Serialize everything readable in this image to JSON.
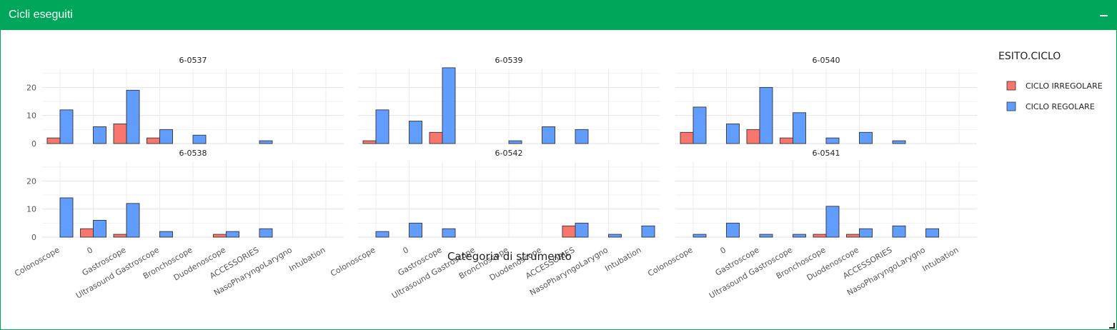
{
  "header": {
    "title": "Cicli eseguiti",
    "collapse_icon": "minus-icon"
  },
  "colors": {
    "header": "#00a65a",
    "irregolare": "#f8766d",
    "regolare": "#619cff"
  },
  "chart_data": {
    "type": "bar",
    "layout": "facets-2x3",
    "xlabel": "Categoria di strumento",
    "ylabel": "",
    "ylim": [
      0,
      28
    ],
    "yticks": [
      0,
      10,
      20
    ],
    "grid": true,
    "legend": {
      "title": "ESITO.CICLO",
      "position": "right",
      "entries": [
        {
          "name": "CICLO IRREGOLARE",
          "color": "#f8766d"
        },
        {
          "name": "CICLO REGOLARE",
          "color": "#619cff"
        }
      ]
    },
    "categories": [
      "Colonoscope",
      "0",
      "Gastroscope",
      "Ultrasound Gastroscope",
      "Bronchoscope",
      "Duodenoscope",
      "ACCESSORIES",
      "NasoPharyngoLarygno",
      "Intubation"
    ],
    "facets": [
      {
        "title": "6-0537",
        "series": [
          {
            "name": "CICLO IRREGOLARE",
            "values": [
              2,
              0,
              7,
              2,
              0,
              0,
              0,
              0,
              0
            ]
          },
          {
            "name": "CICLO REGOLARE",
            "values": [
              12,
              6,
              19,
              5,
              3,
              0,
              1,
              0,
              0
            ]
          }
        ]
      },
      {
        "title": "6-0539",
        "series": [
          {
            "name": "CICLO IRREGOLARE",
            "values": [
              1,
              0,
              4,
              0,
              0,
              0,
              0,
              0,
              0
            ]
          },
          {
            "name": "CICLO REGOLARE",
            "values": [
              12,
              8,
              27,
              0,
              1,
              6,
              5,
              0,
              0
            ]
          }
        ]
      },
      {
        "title": "6-0540",
        "series": [
          {
            "name": "CICLO IRREGOLARE",
            "values": [
              4,
              0,
              5,
              2,
              0,
              0,
              0,
              0,
              0
            ]
          },
          {
            "name": "CICLO REGOLARE",
            "values": [
              13,
              7,
              20,
              11,
              2,
              4,
              1,
              0,
              0
            ]
          }
        ]
      },
      {
        "title": "6-0538",
        "series": [
          {
            "name": "CICLO IRREGOLARE",
            "values": [
              0,
              3,
              1,
              0,
              0,
              1,
              0,
              0,
              0
            ]
          },
          {
            "name": "CICLO REGOLARE",
            "values": [
              14,
              6,
              12,
              2,
              0,
              2,
              3,
              0,
              0
            ]
          }
        ]
      },
      {
        "title": "6-0542",
        "series": [
          {
            "name": "CICLO IRREGOLARE",
            "values": [
              0,
              0,
              0,
              0,
              0,
              0,
              4,
              0,
              0
            ]
          },
          {
            "name": "CICLO REGOLARE",
            "values": [
              2,
              5,
              3,
              0,
              0,
              0,
              5,
              1,
              4
            ]
          }
        ]
      },
      {
        "title": "6-0541",
        "series": [
          {
            "name": "CICLO IRREGOLARE",
            "values": [
              0,
              0,
              0,
              0,
              1,
              1,
              0,
              0,
              0
            ]
          },
          {
            "name": "CICLO REGOLARE",
            "values": [
              1,
              5,
              1,
              1,
              11,
              3,
              4,
              3,
              0
            ]
          }
        ]
      }
    ]
  }
}
